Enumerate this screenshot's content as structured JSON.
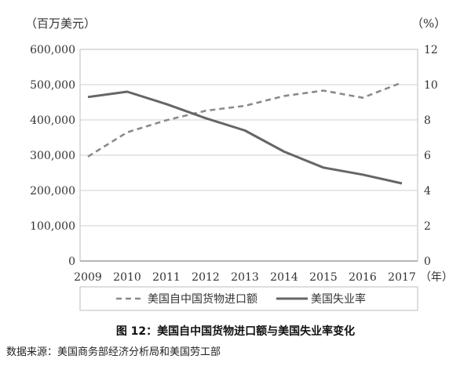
{
  "chart_data": {
    "type": "line",
    "x": [
      "2009",
      "2010",
      "2011",
      "2012",
      "2013",
      "2014",
      "2015",
      "2016",
      "2017"
    ],
    "x_unit": "（年）",
    "left_unit": "（百万美元）",
    "right_unit": "（%）",
    "left_ylim": [
      0,
      600000
    ],
    "right_ylim": [
      0,
      12
    ],
    "left_ticks": [
      "0",
      "100,000",
      "200,000",
      "300,000",
      "400,000",
      "500,000",
      "600,000"
    ],
    "right_ticks": [
      "0",
      "2",
      "4",
      "6",
      "8",
      "10",
      "12"
    ],
    "grid": true,
    "legend_position": "bottom",
    "series": [
      {
        "name": "美国自中国货物进口额",
        "axis": "left",
        "style": "dashed",
        "color": "#8a8a8a",
        "values": [
          296000,
          365000,
          399000,
          426000,
          440000,
          468000,
          483000,
          463000,
          506000
        ]
      },
      {
        "name": "美国失业率",
        "axis": "right",
        "style": "solid",
        "color": "#666666",
        "values": [
          9.3,
          9.6,
          8.9,
          8.1,
          7.4,
          6.2,
          5.3,
          4.9,
          4.4
        ]
      }
    ]
  },
  "caption": "图 12：美国自中国货物进口额与美国失业率变化",
  "source": "数据来源：美国商务部经济分析局和美国劳工部"
}
